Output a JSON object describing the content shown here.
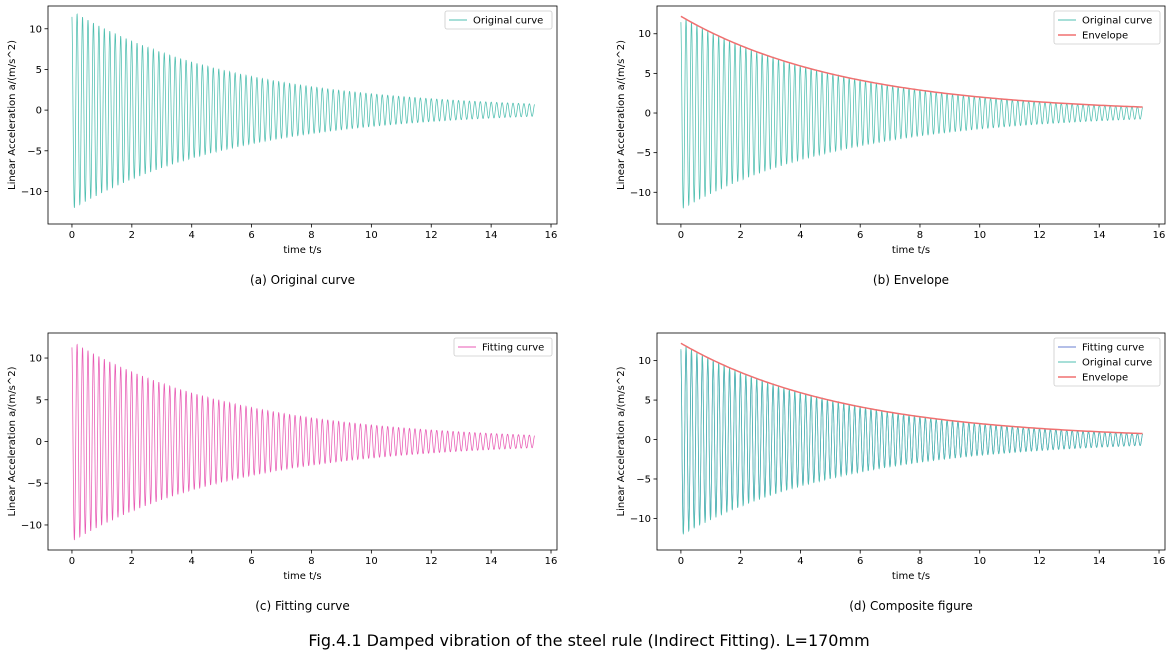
{
  "figure_caption": "Fig.4.1 Damped vibration of the steel rule (Indirect Fitting). L=170mm",
  "colors": {
    "original": "#4fbfb0",
    "envelope": "#f07070",
    "fitting": "#e85ab4",
    "fitting_composite": "#6a7fd0"
  },
  "chart_data": [
    {
      "type": "line",
      "caption": "(a) Original curve",
      "xlabel": "time t/s",
      "ylabel": "Linear Acceleration a/(m/s^2)",
      "xlim": [
        -0.8,
        16.2
      ],
      "ylim": [
        -14,
        12.8
      ],
      "xticks": [
        0,
        2,
        4,
        6,
        8,
        10,
        12,
        14,
        16
      ],
      "yticks": [
        -10,
        -5,
        0,
        5,
        10
      ],
      "legend": "top-right",
      "series": [
        {
          "name": "Original curve",
          "kind": "oscillation",
          "color_key": "original",
          "amplitude": 12.2,
          "decay": 0.18,
          "period": 0.182,
          "t_end": 15.45
        }
      ]
    },
    {
      "type": "line",
      "caption": "(b) Envelope",
      "xlabel": "time t/s",
      "ylabel": "Linear Acceleration a/(m/s^2)",
      "xlim": [
        -0.8,
        16.2
      ],
      "ylim": [
        -14,
        13.5
      ],
      "xticks": [
        0,
        2,
        4,
        6,
        8,
        10,
        12,
        14,
        16
      ],
      "yticks": [
        -10,
        -5,
        0,
        5,
        10
      ],
      "legend": "top-right",
      "series": [
        {
          "name": "Original curve",
          "kind": "oscillation",
          "color_key": "original",
          "amplitude": 12.2,
          "decay": 0.18,
          "period": 0.182,
          "t_end": 15.45
        },
        {
          "name": "Envelope",
          "kind": "envelope",
          "color_key": "envelope",
          "amplitude": 12.2,
          "decay": 0.18,
          "t_end": 15.45
        }
      ]
    },
    {
      "type": "line",
      "caption": "(c) Fitting curve",
      "xlabel": "time t/s",
      "ylabel": "Linear Acceleration a/(m/s^2)",
      "xlim": [
        -0.8,
        16.2
      ],
      "ylim": [
        -13,
        13
      ],
      "xticks": [
        0,
        2,
        4,
        6,
        8,
        10,
        12,
        14,
        16
      ],
      "yticks": [
        -10,
        -5,
        0,
        5,
        10
      ],
      "legend": "top-right",
      "series": [
        {
          "name": "Fitting curve",
          "kind": "oscillation",
          "color_key": "fitting",
          "amplitude": 12.0,
          "decay": 0.18,
          "period": 0.182,
          "t_end": 15.45
        }
      ]
    },
    {
      "type": "line",
      "caption": "(d) Composite figure",
      "xlabel": "time t/s",
      "ylabel": "Linear Acceleration a/(m/s^2)",
      "xlim": [
        -0.8,
        16.2
      ],
      "ylim": [
        -14,
        13.5
      ],
      "xticks": [
        0,
        2,
        4,
        6,
        8,
        10,
        12,
        14,
        16
      ],
      "yticks": [
        -10,
        -5,
        0,
        5,
        10
      ],
      "legend": "top-right",
      "series": [
        {
          "name": "Fitting curve",
          "kind": "oscillation",
          "color_key": "fitting_composite",
          "amplitude": 12.0,
          "decay": 0.18,
          "period": 0.182,
          "t_end": 15.45
        },
        {
          "name": "Original curve",
          "kind": "oscillation",
          "color_key": "original",
          "amplitude": 12.2,
          "decay": 0.18,
          "period": 0.182,
          "t_end": 15.45
        },
        {
          "name": "Envelope",
          "kind": "envelope",
          "color_key": "envelope",
          "amplitude": 12.2,
          "decay": 0.18,
          "t_end": 15.45
        }
      ]
    }
  ]
}
